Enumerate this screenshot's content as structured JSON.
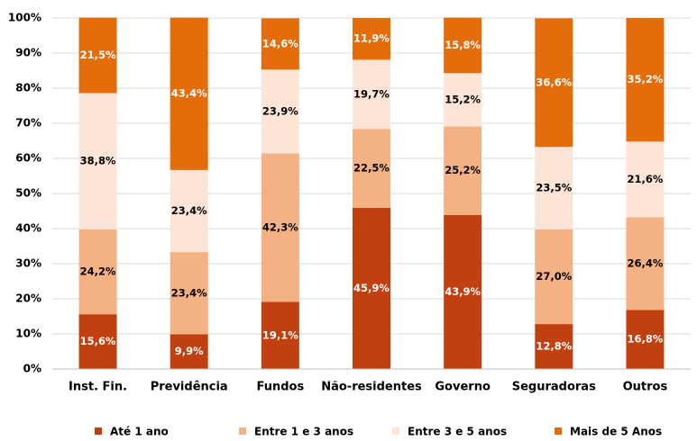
{
  "chart_data": {
    "type": "stacked_bar_percent",
    "categories": [
      "Inst. Fin.",
      "Previdência",
      "Fundos",
      "Não-residentes",
      "Governo",
      "Seguradoras",
      "Outros"
    ],
    "series": [
      {
        "name": "Até 1 ano",
        "color": "#c1400f",
        "label_color": "#ffffff",
        "values": [
          15.6,
          9.9,
          19.1,
          45.9,
          43.9,
          12.8,
          16.8
        ],
        "value_labels": [
          "15,6%",
          "9,9%",
          "19,1%",
          "45,9%",
          "43,9%",
          "12,8%",
          "16,8%"
        ]
      },
      {
        "name": "Entre 1 e 3 anos",
        "color": "#f4b183",
        "label_color": "#000000",
        "values": [
          24.2,
          23.4,
          42.3,
          22.5,
          25.2,
          27.0,
          26.4
        ],
        "value_labels": [
          "24,2%",
          "23,4%",
          "42,3%",
          "22,5%",
          "25,2%",
          "27,0%",
          "26,4%"
        ]
      },
      {
        "name": "Entre 3 e 5 anos",
        "color": "#fce4d6",
        "label_color": "#000000",
        "values": [
          38.8,
          23.4,
          23.9,
          19.7,
          15.2,
          23.5,
          21.6
        ],
        "value_labels": [
          "38,8%",
          "23,4%",
          "23,9%",
          "19,7%",
          "15,2%",
          "23,5%",
          "21,6%"
        ]
      },
      {
        "name": "Mais de 5 Anos",
        "color": "#e46c0a",
        "label_color": "#ffffff",
        "values": [
          21.5,
          43.4,
          14.6,
          11.9,
          15.8,
          36.6,
          35.2
        ],
        "value_labels": [
          "21,5%",
          "43,4%",
          "14,6%",
          "11,9%",
          "15,8%",
          "36,6%",
          "35,2%"
        ]
      }
    ],
    "ylim": [
      0,
      100
    ],
    "yticks": [
      {
        "value": 0,
        "label": "0%"
      },
      {
        "value": 10,
        "label": "10%"
      },
      {
        "value": 20,
        "label": "20%"
      },
      {
        "value": 30,
        "label": "30%"
      },
      {
        "value": 40,
        "label": "40%"
      },
      {
        "value": 50,
        "label": "50%"
      },
      {
        "value": 60,
        "label": "60%"
      },
      {
        "value": 70,
        "label": "70%"
      },
      {
        "value": 80,
        "label": "80%"
      },
      {
        "value": 90,
        "label": "90%"
      },
      {
        "value": 100,
        "label": "100%"
      }
    ],
    "grid": true,
    "legend": "bottom"
  }
}
